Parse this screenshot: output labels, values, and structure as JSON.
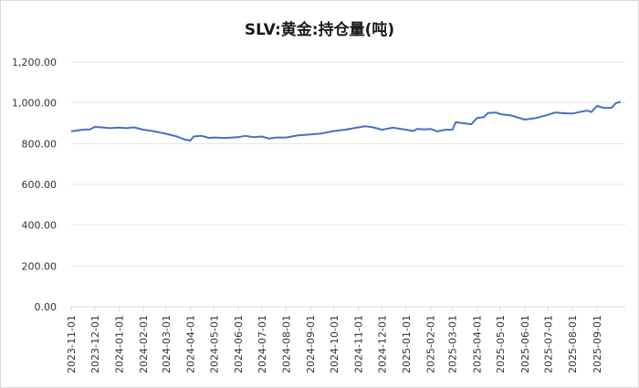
{
  "chart_data": {
    "type": "line",
    "title": "SLV:黄金:持仓量(吨)",
    "xlabel": "",
    "ylabel": "",
    "ylim": [
      0,
      1200
    ],
    "yticks": [
      "0.00",
      "200.00",
      "400.00",
      "600.00",
      "800.00",
      "1,000.00",
      "1,200.00"
    ],
    "grid": true,
    "legend": "none",
    "line_color": "#4472c4",
    "categories": [
      "2023-11-01",
      "2023-12-01",
      "2024-01-01",
      "2024-02-01",
      "2024-03-01",
      "2024-04-01",
      "2024-05-01",
      "2024-06-01",
      "2024-07-01",
      "2024-08-01",
      "2024-09-01",
      "2024-10-01",
      "2024-11-01",
      "2024-12-01",
      "2025-01-01",
      "2025-02-01",
      "2025-03-01",
      "2025-04-01",
      "2025-05-01",
      "2025-06-01",
      "2025-07-01",
      "2025-08-01",
      "2025-09-01"
    ],
    "series": [
      {
        "name": "SLV:黄金:持仓量(吨)",
        "points": [
          [
            "2023-11-01",
            860
          ],
          [
            "2023-11-15",
            868
          ],
          [
            "2023-11-25",
            870
          ],
          [
            "2023-12-01",
            882
          ],
          [
            "2023-12-10",
            880
          ],
          [
            "2023-12-20",
            876
          ],
          [
            "2024-01-01",
            879
          ],
          [
            "2024-01-10",
            876
          ],
          [
            "2024-01-20",
            880
          ],
          [
            "2024-02-01",
            868
          ],
          [
            "2024-02-15",
            860
          ],
          [
            "2024-03-01",
            848
          ],
          [
            "2024-03-15",
            835
          ],
          [
            "2024-03-25",
            820
          ],
          [
            "2024-04-01",
            815
          ],
          [
            "2024-04-05",
            835
          ],
          [
            "2024-04-15",
            838
          ],
          [
            "2024-04-25",
            828
          ],
          [
            "2024-05-01",
            830
          ],
          [
            "2024-05-15",
            828
          ],
          [
            "2024-06-01",
            832
          ],
          [
            "2024-06-10",
            838
          ],
          [
            "2024-06-20",
            832
          ],
          [
            "2024-07-01",
            835
          ],
          [
            "2024-07-10",
            825
          ],
          [
            "2024-07-20",
            830
          ],
          [
            "2024-08-01",
            830
          ],
          [
            "2024-08-15",
            840
          ],
          [
            "2024-09-01",
            845
          ],
          [
            "2024-09-15",
            850
          ],
          [
            "2024-10-01",
            862
          ],
          [
            "2024-10-15",
            868
          ],
          [
            "2024-11-01",
            880
          ],
          [
            "2024-11-10",
            885
          ],
          [
            "2024-11-20",
            880
          ],
          [
            "2024-12-01",
            868
          ],
          [
            "2024-12-15",
            878
          ],
          [
            "2025-01-01",
            868
          ],
          [
            "2025-01-10",
            862
          ],
          [
            "2025-01-15",
            872
          ],
          [
            "2025-01-25",
            870
          ],
          [
            "2025-02-01",
            872
          ],
          [
            "2025-02-10",
            860
          ],
          [
            "2025-02-20",
            868
          ],
          [
            "2025-03-01",
            868
          ],
          [
            "2025-03-05",
            905
          ],
          [
            "2025-03-15",
            900
          ],
          [
            "2025-03-25",
            895
          ],
          [
            "2025-04-01",
            925
          ],
          [
            "2025-04-10",
            930
          ],
          [
            "2025-04-15",
            950
          ],
          [
            "2025-04-25",
            953
          ],
          [
            "2025-05-01",
            945
          ],
          [
            "2025-05-15",
            938
          ],
          [
            "2025-06-01",
            918
          ],
          [
            "2025-06-15",
            925
          ],
          [
            "2025-07-01",
            942
          ],
          [
            "2025-07-10",
            953
          ],
          [
            "2025-07-25",
            948
          ],
          [
            "2025-08-01",
            948
          ],
          [
            "2025-08-10",
            955
          ],
          [
            "2025-08-20",
            962
          ],
          [
            "2025-08-25",
            955
          ],
          [
            "2025-09-01",
            985
          ],
          [
            "2025-09-10",
            975
          ],
          [
            "2025-09-20",
            976
          ],
          [
            "2025-09-25",
            998
          ],
          [
            "2025-10-01",
            1005
          ]
        ]
      }
    ]
  }
}
